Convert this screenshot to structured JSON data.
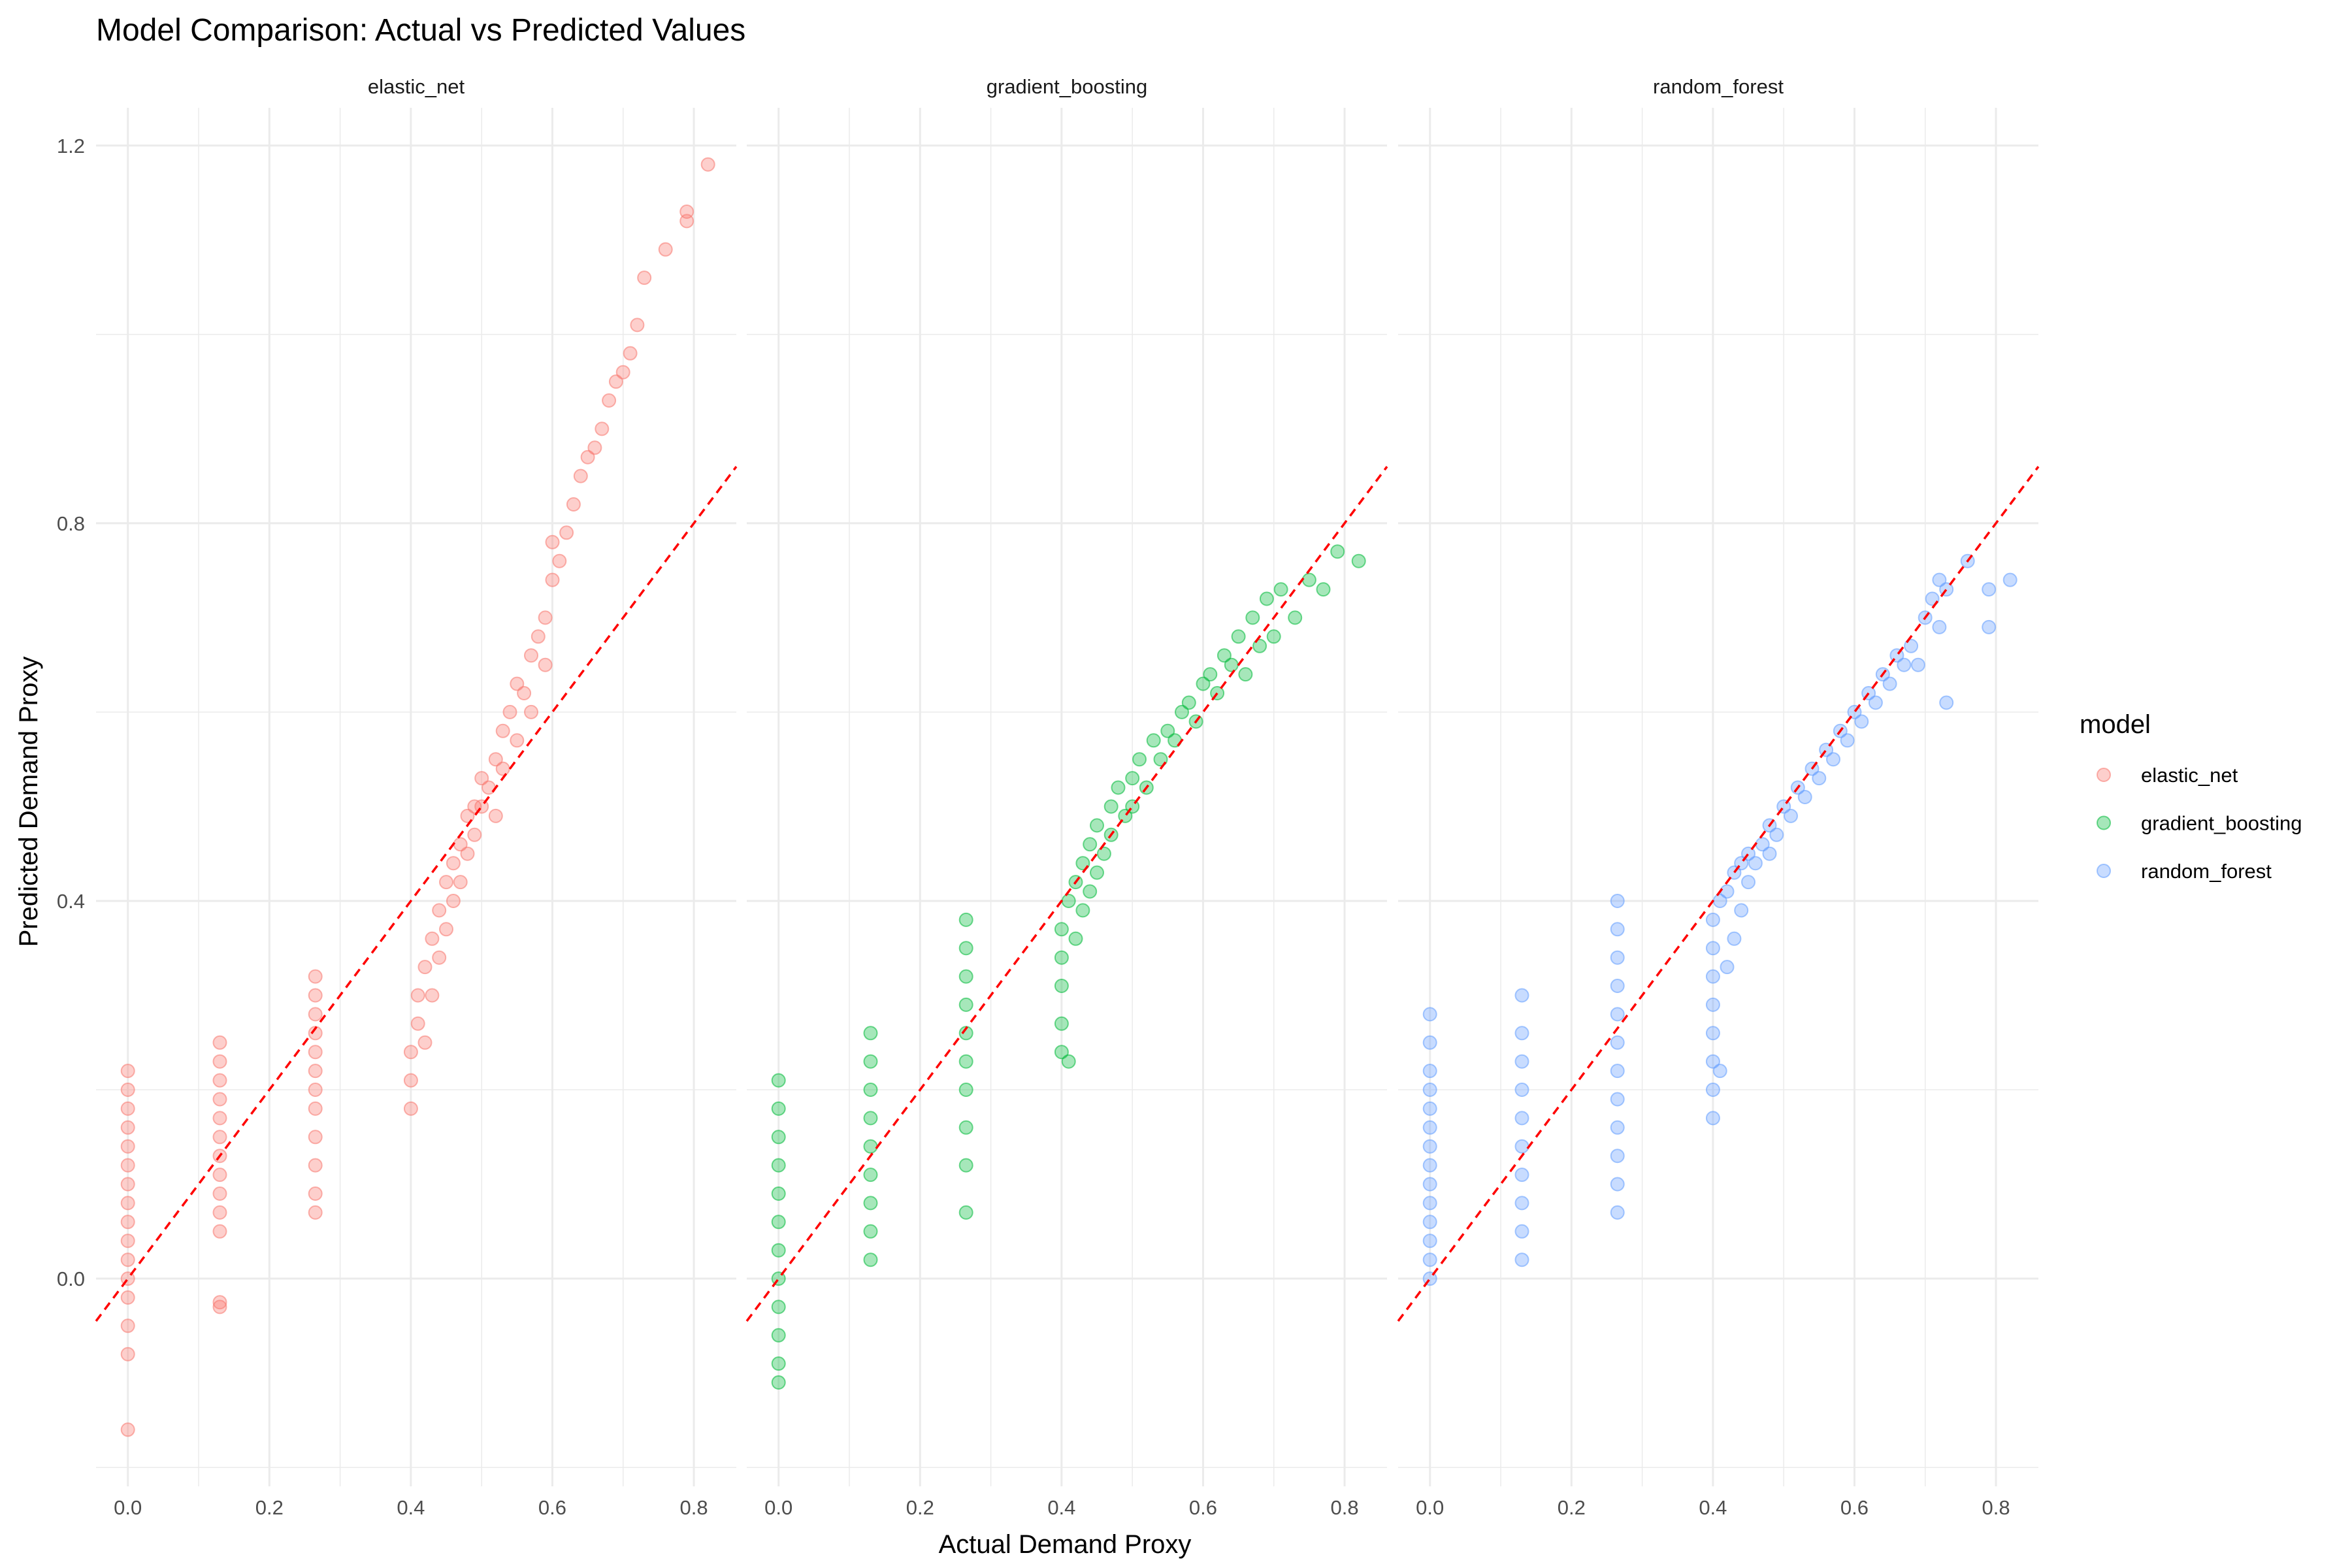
{
  "chart_data": {
    "type": "scatter",
    "title": "Model Comparison: Actual vs Predicted Values",
    "xlabel": "Actual Demand Proxy",
    "ylabel": "Predicted Demand Proxy",
    "xlim": [
      -0.045,
      0.86
    ],
    "ylim": [
      -0.22,
      1.24
    ],
    "x_ticks": [
      0.0,
      0.2,
      0.4,
      0.6,
      0.8
    ],
    "y_ticks": [
      0.0,
      0.4,
      0.8,
      1.2
    ],
    "x_tick_labels": [
      "0.0",
      "0.2",
      "0.4",
      "0.6",
      "0.8"
    ],
    "y_tick_labels": [
      "0.0",
      "0.4",
      "0.8",
      "1.2"
    ],
    "grid": true,
    "reference_line": {
      "type": "identity",
      "color": "#ff0000",
      "style": "dashed"
    },
    "legend": {
      "title": "model",
      "position": "right"
    },
    "facets": [
      {
        "name": "elastic_net",
        "color": "#F8766D",
        "points": [
          [
            0.0,
            -0.16
          ],
          [
            0.0,
            -0.08
          ],
          [
            0.0,
            -0.05
          ],
          [
            0.0,
            -0.02
          ],
          [
            0.0,
            0.0
          ],
          [
            0.0,
            0.02
          ],
          [
            0.0,
            0.04
          ],
          [
            0.0,
            0.06
          ],
          [
            0.0,
            0.08
          ],
          [
            0.0,
            0.1
          ],
          [
            0.0,
            0.12
          ],
          [
            0.0,
            0.14
          ],
          [
            0.0,
            0.16
          ],
          [
            0.0,
            0.18
          ],
          [
            0.0,
            0.2
          ],
          [
            0.0,
            0.22
          ],
          [
            0.13,
            -0.03
          ],
          [
            0.13,
            -0.025
          ],
          [
            0.13,
            0.05
          ],
          [
            0.13,
            0.07
          ],
          [
            0.13,
            0.09
          ],
          [
            0.13,
            0.11
          ],
          [
            0.13,
            0.13
          ],
          [
            0.13,
            0.15
          ],
          [
            0.13,
            0.17
          ],
          [
            0.13,
            0.19
          ],
          [
            0.13,
            0.21
          ],
          [
            0.13,
            0.23
          ],
          [
            0.13,
            0.25
          ],
          [
            0.265,
            0.07
          ],
          [
            0.265,
            0.09
          ],
          [
            0.265,
            0.12
          ],
          [
            0.265,
            0.15
          ],
          [
            0.265,
            0.18
          ],
          [
            0.265,
            0.2
          ],
          [
            0.265,
            0.22
          ],
          [
            0.265,
            0.24
          ],
          [
            0.265,
            0.26
          ],
          [
            0.265,
            0.28
          ],
          [
            0.265,
            0.3
          ],
          [
            0.265,
            0.32
          ],
          [
            0.4,
            0.18
          ],
          [
            0.4,
            0.21
          ],
          [
            0.4,
            0.24
          ],
          [
            0.41,
            0.27
          ],
          [
            0.41,
            0.3
          ],
          [
            0.42,
            0.25
          ],
          [
            0.42,
            0.33
          ],
          [
            0.43,
            0.3
          ],
          [
            0.43,
            0.36
          ],
          [
            0.44,
            0.34
          ],
          [
            0.44,
            0.39
          ],
          [
            0.45,
            0.37
          ],
          [
            0.45,
            0.42
          ],
          [
            0.46,
            0.4
          ],
          [
            0.46,
            0.44
          ],
          [
            0.47,
            0.42
          ],
          [
            0.47,
            0.46
          ],
          [
            0.48,
            0.45
          ],
          [
            0.48,
            0.49
          ],
          [
            0.49,
            0.47
          ],
          [
            0.49,
            0.5
          ],
          [
            0.5,
            0.5
          ],
          [
            0.5,
            0.53
          ],
          [
            0.51,
            0.52
          ],
          [
            0.52,
            0.55
          ],
          [
            0.52,
            0.49
          ],
          [
            0.53,
            0.58
          ],
          [
            0.53,
            0.54
          ],
          [
            0.54,
            0.6
          ],
          [
            0.55,
            0.57
          ],
          [
            0.55,
            0.63
          ],
          [
            0.56,
            0.62
          ],
          [
            0.57,
            0.66
          ],
          [
            0.57,
            0.6
          ],
          [
            0.58,
            0.68
          ],
          [
            0.59,
            0.7
          ],
          [
            0.59,
            0.65
          ],
          [
            0.6,
            0.74
          ],
          [
            0.6,
            0.78
          ],
          [
            0.61,
            0.76
          ],
          [
            0.62,
            0.79
          ],
          [
            0.63,
            0.82
          ],
          [
            0.64,
            0.85
          ],
          [
            0.65,
            0.87
          ],
          [
            0.66,
            0.88
          ],
          [
            0.67,
            0.9
          ],
          [
            0.68,
            0.93
          ],
          [
            0.69,
            0.95
          ],
          [
            0.7,
            0.96
          ],
          [
            0.71,
            0.98
          ],
          [
            0.72,
            1.01
          ],
          [
            0.73,
            1.06
          ],
          [
            0.76,
            1.09
          ],
          [
            0.79,
            1.12
          ],
          [
            0.79,
            1.13
          ],
          [
            0.82,
            1.18
          ]
        ]
      },
      {
        "name": "gradient_boosting",
        "color": "#00BA38",
        "points": [
          [
            0.0,
            -0.11
          ],
          [
            0.0,
            -0.09
          ],
          [
            0.0,
            -0.06
          ],
          [
            0.0,
            -0.03
          ],
          [
            0.0,
            0.0
          ],
          [
            0.0,
            0.03
          ],
          [
            0.0,
            0.06
          ],
          [
            0.0,
            0.09
          ],
          [
            0.0,
            0.12
          ],
          [
            0.0,
            0.15
          ],
          [
            0.0,
            0.18
          ],
          [
            0.0,
            0.21
          ],
          [
            0.13,
            0.02
          ],
          [
            0.13,
            0.05
          ],
          [
            0.13,
            0.08
          ],
          [
            0.13,
            0.11
          ],
          [
            0.13,
            0.14
          ],
          [
            0.13,
            0.17
          ],
          [
            0.13,
            0.2
          ],
          [
            0.13,
            0.23
          ],
          [
            0.13,
            0.26
          ],
          [
            0.265,
            0.07
          ],
          [
            0.265,
            0.12
          ],
          [
            0.265,
            0.16
          ],
          [
            0.265,
            0.2
          ],
          [
            0.265,
            0.23
          ],
          [
            0.265,
            0.26
          ],
          [
            0.265,
            0.29
          ],
          [
            0.265,
            0.32
          ],
          [
            0.265,
            0.35
          ],
          [
            0.265,
            0.38
          ],
          [
            0.4,
            0.24
          ],
          [
            0.4,
            0.27
          ],
          [
            0.4,
            0.31
          ],
          [
            0.4,
            0.34
          ],
          [
            0.4,
            0.37
          ],
          [
            0.41,
            0.23
          ],
          [
            0.41,
            0.4
          ],
          [
            0.42,
            0.36
          ],
          [
            0.42,
            0.42
          ],
          [
            0.43,
            0.39
          ],
          [
            0.43,
            0.44
          ],
          [
            0.44,
            0.41
          ],
          [
            0.44,
            0.46
          ],
          [
            0.45,
            0.43
          ],
          [
            0.45,
            0.48
          ],
          [
            0.46,
            0.45
          ],
          [
            0.47,
            0.5
          ],
          [
            0.47,
            0.47
          ],
          [
            0.48,
            0.52
          ],
          [
            0.49,
            0.49
          ],
          [
            0.5,
            0.53
          ],
          [
            0.5,
            0.5
          ],
          [
            0.51,
            0.55
          ],
          [
            0.52,
            0.52
          ],
          [
            0.53,
            0.57
          ],
          [
            0.54,
            0.55
          ],
          [
            0.55,
            0.58
          ],
          [
            0.56,
            0.57
          ],
          [
            0.57,
            0.6
          ],
          [
            0.58,
            0.61
          ],
          [
            0.59,
            0.59
          ],
          [
            0.6,
            0.63
          ],
          [
            0.61,
            0.64
          ],
          [
            0.62,
            0.62
          ],
          [
            0.63,
            0.66
          ],
          [
            0.64,
            0.65
          ],
          [
            0.65,
            0.68
          ],
          [
            0.66,
            0.64
          ],
          [
            0.67,
            0.7
          ],
          [
            0.68,
            0.67
          ],
          [
            0.69,
            0.72
          ],
          [
            0.7,
            0.68
          ],
          [
            0.71,
            0.73
          ],
          [
            0.73,
            0.7
          ],
          [
            0.75,
            0.74
          ],
          [
            0.77,
            0.73
          ],
          [
            0.79,
            0.77
          ],
          [
            0.82,
            0.76
          ]
        ]
      },
      {
        "name": "random_forest",
        "color": "#619CFF",
        "points": [
          [
            0.0,
            0.0
          ],
          [
            0.0,
            0.02
          ],
          [
            0.0,
            0.04
          ],
          [
            0.0,
            0.06
          ],
          [
            0.0,
            0.08
          ],
          [
            0.0,
            0.1
          ],
          [
            0.0,
            0.12
          ],
          [
            0.0,
            0.14
          ],
          [
            0.0,
            0.16
          ],
          [
            0.0,
            0.18
          ],
          [
            0.0,
            0.2
          ],
          [
            0.0,
            0.22
          ],
          [
            0.0,
            0.25
          ],
          [
            0.0,
            0.28
          ],
          [
            0.13,
            0.02
          ],
          [
            0.13,
            0.05
          ],
          [
            0.13,
            0.08
          ],
          [
            0.13,
            0.11
          ],
          [
            0.13,
            0.14
          ],
          [
            0.13,
            0.17
          ],
          [
            0.13,
            0.2
          ],
          [
            0.13,
            0.23
          ],
          [
            0.13,
            0.26
          ],
          [
            0.13,
            0.3
          ],
          [
            0.265,
            0.07
          ],
          [
            0.265,
            0.1
          ],
          [
            0.265,
            0.13
          ],
          [
            0.265,
            0.16
          ],
          [
            0.265,
            0.19
          ],
          [
            0.265,
            0.22
          ],
          [
            0.265,
            0.25
          ],
          [
            0.265,
            0.28
          ],
          [
            0.265,
            0.31
          ],
          [
            0.265,
            0.34
          ],
          [
            0.265,
            0.37
          ],
          [
            0.265,
            0.4
          ],
          [
            0.4,
            0.17
          ],
          [
            0.4,
            0.2
          ],
          [
            0.4,
            0.23
          ],
          [
            0.4,
            0.26
          ],
          [
            0.4,
            0.29
          ],
          [
            0.4,
            0.32
          ],
          [
            0.4,
            0.35
          ],
          [
            0.4,
            0.38
          ],
          [
            0.41,
            0.22
          ],
          [
            0.41,
            0.4
          ],
          [
            0.42,
            0.33
          ],
          [
            0.42,
            0.41
          ],
          [
            0.43,
            0.36
          ],
          [
            0.43,
            0.43
          ],
          [
            0.44,
            0.39
          ],
          [
            0.44,
            0.44
          ],
          [
            0.45,
            0.42
          ],
          [
            0.45,
            0.45
          ],
          [
            0.46,
            0.44
          ],
          [
            0.47,
            0.46
          ],
          [
            0.48,
            0.45
          ],
          [
            0.48,
            0.48
          ],
          [
            0.49,
            0.47
          ],
          [
            0.5,
            0.5
          ],
          [
            0.51,
            0.49
          ],
          [
            0.52,
            0.52
          ],
          [
            0.53,
            0.51
          ],
          [
            0.54,
            0.54
          ],
          [
            0.55,
            0.53
          ],
          [
            0.56,
            0.56
          ],
          [
            0.57,
            0.55
          ],
          [
            0.58,
            0.58
          ],
          [
            0.59,
            0.57
          ],
          [
            0.6,
            0.6
          ],
          [
            0.61,
            0.59
          ],
          [
            0.62,
            0.62
          ],
          [
            0.63,
            0.61
          ],
          [
            0.64,
            0.64
          ],
          [
            0.65,
            0.63
          ],
          [
            0.66,
            0.66
          ],
          [
            0.67,
            0.65
          ],
          [
            0.68,
            0.67
          ],
          [
            0.69,
            0.65
          ],
          [
            0.7,
            0.7
          ],
          [
            0.71,
            0.72
          ],
          [
            0.72,
            0.74
          ],
          [
            0.72,
            0.69
          ],
          [
            0.73,
            0.61
          ],
          [
            0.73,
            0.73
          ],
          [
            0.76,
            0.76
          ],
          [
            0.79,
            0.69
          ],
          [
            0.79,
            0.73
          ],
          [
            0.82,
            0.74
          ]
        ]
      }
    ]
  }
}
